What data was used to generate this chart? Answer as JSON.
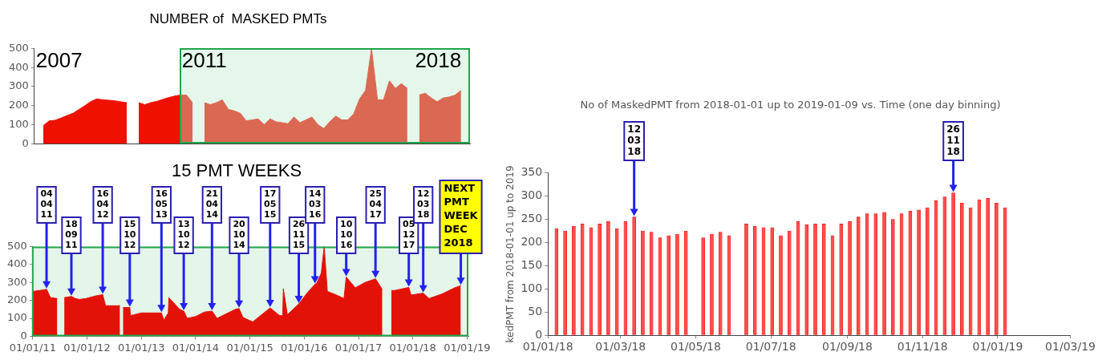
{
  "chart_data": [
    {
      "type": "area",
      "title": "NUMBER of  MASKED PMTs",
      "color": "#ee1100",
      "ylim": [
        0,
        500
      ],
      "yticks": [
        0,
        100,
        200,
        300,
        400,
        500
      ],
      "tick_labels": "y",
      "grid": false,
      "annotations": [
        "2007",
        "2011",
        "2018"
      ],
      "categories": [
        null,
        null,
        null,
        null,
        null,
        null,
        null,
        null,
        null,
        null,
        null,
        null,
        null,
        null,
        null,
        null,
        null,
        null,
        null,
        null,
        null,
        null,
        null,
        null,
        null,
        null,
        null,
        null,
        null,
        null,
        null,
        null,
        null,
        null,
        null,
        null,
        null,
        null,
        null,
        null,
        null,
        null,
        null,
        null,
        null,
        null,
        null,
        null,
        null,
        null,
        null,
        null,
        null,
        null,
        null,
        null,
        null,
        null,
        null,
        null,
        null,
        null,
        null,
        null,
        null,
        null,
        null,
        null,
        null,
        null,
        null,
        null,
        null
      ],
      "values": [
        null,
        95,
        120,
        123,
        135,
        148,
        160,
        180,
        200,
        222,
        235,
        230,
        228,
        225,
        220,
        215,
        null,
        215,
        205,
        215,
        222,
        232,
        242,
        250,
        255,
        255,
        215,
        null,
        215,
        205,
        215,
        230,
        180,
        172,
        160,
        120,
        125,
        130,
        100,
        130,
        115,
        110,
        105,
        140,
        110,
        125,
        140,
        100,
        80,
        115,
        145,
        125,
        125,
        155,
        235,
        280,
        500,
        230,
        230,
        330,
        290,
        315,
        290,
        null,
        255,
        265,
        240,
        220,
        240,
        245,
        255,
        280,
        null
      ]
    },
    {
      "type": "area",
      "title": "15 PMT WEEKS",
      "color": "#e31208",
      "xlim": [
        "2011-01-01",
        "2019-01-10"
      ],
      "ylim": [
        0,
        500
      ],
      "yticks": [
        0,
        100,
        200,
        300,
        400,
        500
      ],
      "grid": false,
      "xticks": [
        {
          "value": "2011-01-01",
          "label": "01/01/11"
        },
        {
          "value": "2012-01-01",
          "label": "01/01/12"
        },
        {
          "value": "2013-01-01",
          "label": "01/01/13"
        },
        {
          "value": "2014-01-01",
          "label": "01/01/14"
        },
        {
          "value": "2015-01-01",
          "label": "01/01/15"
        },
        {
          "value": "2016-01-01",
          "label": "01/01/16"
        },
        {
          "value": "2017-01-01",
          "label": "01/01/17"
        },
        {
          "value": "2018-01-01",
          "label": "01/01/18"
        },
        {
          "value": "2019-01-01",
          "label": "01/01/19"
        }
      ],
      "bands": [
        {
          "axis": "x",
          "from": "2011-01-01",
          "to": "2019-01-10",
          "color": "#e4f5ea"
        }
      ],
      "annotations": [
        {
          "text": "04\n04\n11",
          "x": "2011-04-04",
          "y": 262
        },
        {
          "text": "18\n09\n11",
          "x": "2011-09-18",
          "y": 222
        },
        {
          "text": "16\n04\n12",
          "x": "2012-04-16",
          "y": 232
        },
        {
          "text": "15\n10\n12",
          "x": "2012-10-15",
          "y": 160
        },
        {
          "text": "16\n05\n13",
          "x": "2013-05-16",
          "y": 130
        },
        {
          "text": "13\n10\n12",
          "x": "2013-10-13",
          "y": 140
        },
        {
          "text": "21\n04\n14",
          "x": "2014-04-21",
          "y": 140
        },
        {
          "text": "20\n10\n14",
          "x": "2014-10-20",
          "y": 155
        },
        {
          "text": "17\n05\n15",
          "x": "2015-05-17",
          "y": 158
        },
        {
          "text": "26\n11\n15",
          "x": "2015-11-26",
          "y": 180
        },
        {
          "text": "14\n03\n16",
          "x": "2016-03-14",
          "y": 290
        },
        {
          "text": "10\n10\n16",
          "x": "2016-10-10",
          "y": 330
        },
        {
          "text": "25\n04\n17",
          "x": "2017-04-25",
          "y": 320
        },
        {
          "text": "05\n12\n17",
          "x": "2017-12-05",
          "y": 272
        },
        {
          "text": "12\n03\n18",
          "x": "2018-03-12",
          "y": 240
        },
        {
          "text": "NEXT\nPMT\nWEEK\nDEC\n2018",
          "x": "2018-11-20",
          "y": 282
        }
      ],
      "x": [
        "2011-01-01",
        "2011-03-15",
        "2011-04-04",
        "2011-04-30",
        "2011-06-15",
        "2011-07-10",
        "2011-08-01",
        "2011-09-18",
        "2011-10-15",
        "2011-11-10",
        "2011-12-25",
        "2012-03-01",
        "2012-04-16",
        "2012-05-05",
        "2012-08-10",
        "2012-08-25",
        "2012-08-30",
        "2012-10-15",
        "2012-10-20",
        "2013-01-01",
        "2013-04-15",
        "2013-05-16",
        "2013-06-01",
        "2013-07-01",
        "2013-07-05",
        "2013-09-15",
        "2013-10-13",
        "2013-11-05",
        "2014-01-01",
        "2014-03-01",
        "2014-04-21",
        "2014-05-25",
        "2014-09-25",
        "2014-10-20",
        "2014-11-15",
        "2015-01-20",
        "2015-05-05",
        "2015-05-17",
        "2015-07-20",
        "2015-08-10",
        "2015-08-14",
        "2015-09-10",
        "2015-11-26",
        "2016-01-20",
        "2016-03-14",
        "2016-03-25",
        "2016-04-25",
        "2016-05-15",
        "2016-06-05",
        "2016-08-05",
        "2016-09-25",
        "2016-10-10",
        "2016-12-10",
        "2017-02-15",
        "2017-04-25",
        "2017-06-10",
        "2017-06-20",
        "2017-08-10",
        "2017-09-01",
        "2017-12-05",
        "2017-12-20",
        "2018-03-12",
        "2018-04-20",
        "2018-07-15",
        "2018-10-10",
        "2018-11-20"
      ],
      "values": [
        250,
        258,
        262,
        215,
        210,
        null,
        215,
        222,
        210,
        205,
        210,
        225,
        232,
        170,
        170,
        null,
        160,
        160,
        115,
        130,
        130,
        130,
        90,
        130,
        215,
        150,
        140,
        100,
        110,
        135,
        140,
        100,
        150,
        155,
        105,
        80,
        150,
        158,
        115,
        115,
        265,
        120,
        180,
        240,
        290,
        295,
        350,
        500,
        250,
        230,
        210,
        330,
        270,
        300,
        320,
        260,
        null,
        255,
        255,
        272,
        230,
        240,
        210,
        235,
        270,
        282
      ]
    },
    {
      "type": "bar",
      "title": "No of MaskedPMT from 2018-01-01 up to 2019-01-09 vs. Time (one day binning)",
      "ylabel": "kedPMT from 2018-01-01 up to 2019",
      "color": "#ff4d4d",
      "xlim": [
        "2018-01-01",
        "2019-03-01"
      ],
      "ylim": [
        0,
        350
      ],
      "yticks": [
        0,
        50,
        100,
        150,
        200,
        250,
        300,
        350
      ],
      "grid": false,
      "xticks": [
        {
          "value": "2018-01-01",
          "label": "01/01/18"
        },
        {
          "value": "2018-03-01",
          "label": "01/03/18"
        },
        {
          "value": "2018-05-01",
          "label": "01/05/18"
        },
        {
          "value": "2018-07-01",
          "label": "01/07/18"
        },
        {
          "value": "2018-09-01",
          "label": "01/09/18"
        },
        {
          "value": "2018-11-01",
          "label": "01/11/18"
        },
        {
          "value": "2019-01-01",
          "label": "01/01/19"
        },
        {
          "value": "2019-03-01",
          "label": "01/03/19"
        }
      ],
      "annotations": [
        {
          "text": "12\n03\n18",
          "x": "2018-03-12",
          "y": 255
        },
        {
          "text": "26\n11\n18",
          "x": "2018-11-26",
          "y": 307
        }
      ],
      "x": [
        "2018-01-08",
        "2018-01-15",
        "2018-01-22",
        "2018-01-29",
        "2018-02-05",
        "2018-02-12",
        "2018-02-19",
        "2018-02-26",
        "2018-03-05",
        "2018-03-12",
        "2018-03-19",
        "2018-03-26",
        "2018-04-02",
        "2018-04-09",
        "2018-04-16",
        "2018-04-23",
        "2018-05-07",
        "2018-05-14",
        "2018-05-21",
        "2018-05-28",
        "2018-06-11",
        "2018-06-18",
        "2018-06-25",
        "2018-07-02",
        "2018-07-09",
        "2018-07-16",
        "2018-07-23",
        "2018-07-30",
        "2018-08-06",
        "2018-08-13",
        "2018-08-20",
        "2018-08-27",
        "2018-09-03",
        "2018-09-10",
        "2018-09-17",
        "2018-09-24",
        "2018-10-01",
        "2018-10-08",
        "2018-10-15",
        "2018-10-22",
        "2018-10-29",
        "2018-11-05",
        "2018-11-12",
        "2018-11-19",
        "2018-11-26",
        "2018-12-03",
        "2018-12-10",
        "2018-12-17",
        "2018-12-24",
        "2018-12-31",
        "2019-01-07"
      ],
      "values": [
        230,
        225,
        235,
        240,
        232,
        240,
        245,
        230,
        245,
        255,
        225,
        222,
        210,
        215,
        218,
        225,
        210,
        218,
        222,
        215,
        240,
        235,
        232,
        232,
        215,
        225,
        245,
        238,
        240,
        240,
        215,
        240,
        245,
        255,
        262,
        262,
        265,
        250,
        262,
        268,
        270,
        275,
        290,
        298,
        307,
        285,
        275,
        292,
        295,
        285,
        275
      ]
    }
  ]
}
